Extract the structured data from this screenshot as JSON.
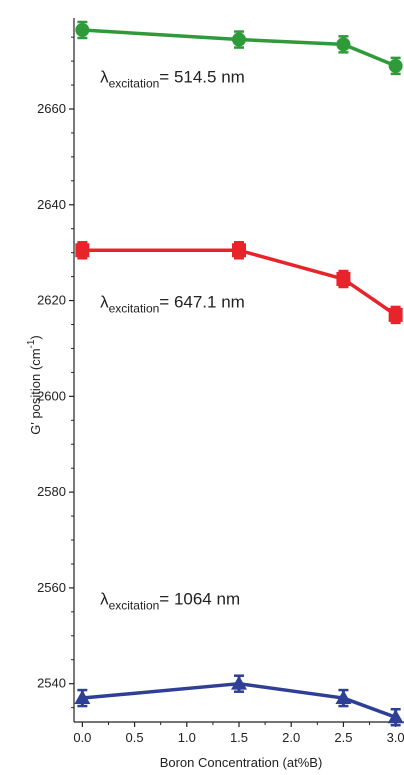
{
  "chart_data": {
    "type": "line",
    "title": "",
    "xlabel": "Boron Concentration (at%B)",
    "ylabel": "G' position (cm",
    "ylabel_sup": "-1",
    "ylabel_close": ")",
    "xlim": [
      -0.08,
      3.08
    ],
    "ylim": [
      2532,
      2679
    ],
    "x_ticks": [
      "0.0",
      "0.5",
      "1.0",
      "1.5",
      "2.0",
      "2.5",
      "3.0"
    ],
    "y_ticks": [
      "2540",
      "2560",
      "2580",
      "2600",
      "2620",
      "2640",
      "2660"
    ],
    "grid": false,
    "series": [
      {
        "x": [
          0.0,
          1.5,
          2.5,
          3.0
        ],
        "y": [
          2676.5,
          2674.5,
          2673.5,
          2669.0
        ],
        "color": "#2e9a3a",
        "marker": "diamond",
        "annotation": {
          "lambda": "λ",
          "sub": "excitation",
          "text": "= 514.5 nm"
        }
      },
      {
        "x": [
          0.0,
          1.5,
          2.5,
          3.0
        ],
        "y": [
          2630.5,
          2630.5,
          2624.5,
          2617.0
        ],
        "color": "#e8242b",
        "marker": "square",
        "annotation": {
          "lambda": "λ",
          "sub": "excitation",
          "text": "= 647.1 nm"
        }
      },
      {
        "x": [
          0.0,
          1.5,
          2.5,
          3.0
        ],
        "y": [
          2537.0,
          2540.0,
          2537.0,
          2533.0
        ],
        "color": "#2f3f95",
        "marker": "triangle",
        "annotation": {
          "lambda": "λ",
          "sub": "excitation",
          "text": "= 1064 nm"
        }
      }
    ]
  }
}
